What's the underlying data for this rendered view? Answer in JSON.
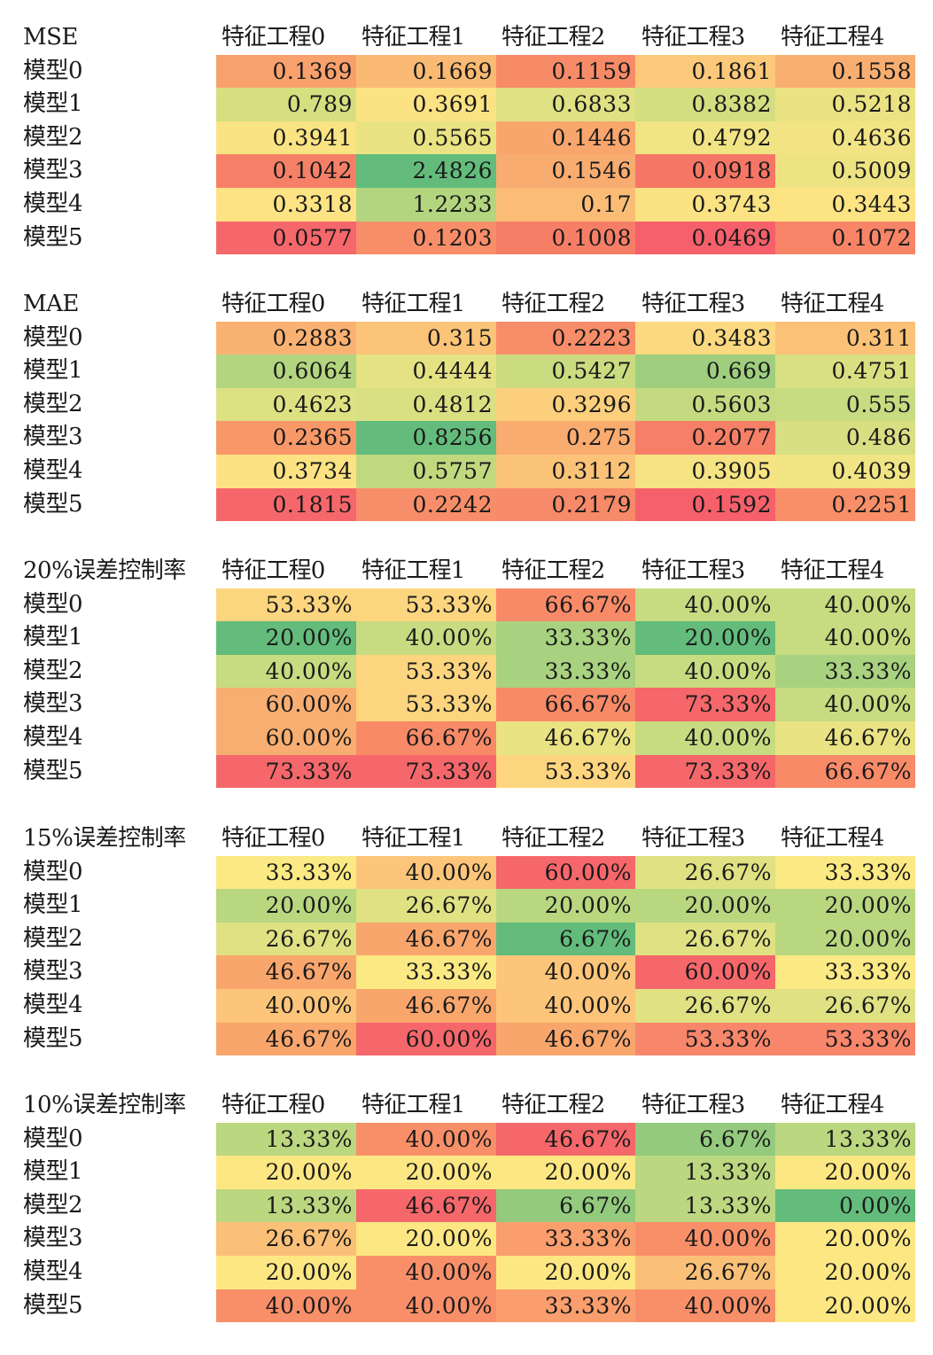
{
  "column_headers": [
    "特征工程0",
    "特征工程1",
    "特征工程2",
    "特征工程3",
    "特征工程4"
  ],
  "tables": [
    {
      "title": "MSE",
      "rows": [
        {
          "label": "模型0",
          "values": [
            "0.1369",
            "0.1669",
            "0.1159",
            "0.1861",
            "0.1558"
          ],
          "colors": [
            "#f8a16c",
            "#faba74",
            "#f78b68",
            "#fcc97a",
            "#f9ae71"
          ]
        },
        {
          "label": "模型1",
          "values": [
            "0.789",
            "0.3691",
            "0.6833",
            "0.8382",
            "0.5218"
          ],
          "colors": [
            "#d6df80",
            "#fbe283",
            "#dfe182",
            "#d3de80",
            "#ebe383"
          ]
        },
        {
          "label": "模型2",
          "values": [
            "0.3941",
            "0.5565",
            "0.1446",
            "0.4792",
            "0.4636"
          ],
          "colors": [
            "#f9e383",
            "#eae383",
            "#f9a66d",
            "#f0e484",
            "#f2e484"
          ]
        },
        {
          "label": "模型3",
          "values": [
            "0.1042",
            "2.4826",
            "0.1546",
            "0.0918",
            "0.5009"
          ],
          "colors": [
            "#f68067",
            "#63bc7b",
            "#f9ac70",
            "#f67665",
            "#ede383"
          ]
        },
        {
          "label": "模型4",
          "values": [
            "0.3318",
            "1.2233",
            "0.17",
            "0.3743",
            "0.3443"
          ],
          "colors": [
            "#fde383",
            "#b3d57f",
            "#fbbd76",
            "#fbe383",
            "#fde483"
          ]
        },
        {
          "label": "模型5",
          "values": [
            "0.0577",
            "0.1203",
            "0.1008",
            "0.0469",
            "0.1072"
          ],
          "colors": [
            "#f5676a",
            "#f88e69",
            "#f77e66",
            "#f5606b",
            "#f78467"
          ]
        }
      ]
    },
    {
      "title": "MAE",
      "rows": [
        {
          "label": "模型0",
          "values": [
            "0.2883",
            "0.315",
            "0.2223",
            "0.3483",
            "0.311"
          ],
          "colors": [
            "#fab272",
            "#fbc478",
            "#f88d69",
            "#fcd980",
            "#fbc277"
          ]
        },
        {
          "label": "模型1",
          "values": [
            "0.6064",
            "0.4444",
            "0.5427",
            "0.669",
            "0.4751"
          ],
          "colors": [
            "#b3d57f",
            "#e4e283",
            "#cbdc80",
            "#9fcf7e",
            "#d9e082"
          ]
        },
        {
          "label": "模型2",
          "values": [
            "0.4623",
            "0.4812",
            "0.3296",
            "0.5603",
            "0.555"
          ],
          "colors": [
            "#dee182",
            "#d9e082",
            "#fbcf7c",
            "#c5da80",
            "#c7db80"
          ]
        },
        {
          "label": "模型3",
          "values": [
            "0.2365",
            "0.8256",
            "0.275",
            "0.2077",
            "0.486"
          ],
          "colors": [
            "#f89869",
            "#63bc7b",
            "#faab70",
            "#f77e67",
            "#d8df82"
          ]
        },
        {
          "label": "模型4",
          "values": [
            "0.3734",
            "0.5757",
            "0.3112",
            "0.3905",
            "0.4039"
          ],
          "colors": [
            "#fde283",
            "#c0d97f",
            "#fbc378",
            "#f5e384",
            "#f1e484"
          ]
        },
        {
          "label": "模型5",
          "values": [
            "0.1815",
            "0.2242",
            "0.2179",
            "0.1592",
            "0.2251"
          ],
          "colors": [
            "#f5676a",
            "#f88e69",
            "#f78a68",
            "#f5606b",
            "#f88f69"
          ]
        }
      ]
    },
    {
      "title": "20%误差控制率",
      "rows": [
        {
          "label": "模型0",
          "values": [
            "53.33%",
            "53.33%",
            "66.67%",
            "40.00%",
            "40.00%"
          ],
          "colors": [
            "#fcd57e",
            "#fcd57e",
            "#f88a68",
            "#c7db80",
            "#c7db80"
          ]
        },
        {
          "label": "模型1",
          "values": [
            "20.00%",
            "40.00%",
            "33.33%",
            "20.00%",
            "40.00%"
          ],
          "colors": [
            "#63bc7b",
            "#c7db80",
            "#a8d27f",
            "#63bc7b",
            "#c7db80"
          ]
        },
        {
          "label": "模型2",
          "values": [
            "40.00%",
            "53.33%",
            "33.33%",
            "40.00%",
            "33.33%"
          ],
          "colors": [
            "#c7db80",
            "#fcd57e",
            "#a8d27f",
            "#c7db80",
            "#a8d27f"
          ]
        },
        {
          "label": "模型3",
          "values": [
            "60.00%",
            "53.33%",
            "66.67%",
            "73.33%",
            "40.00%"
          ],
          "colors": [
            "#f9ae71",
            "#fcd57e",
            "#f88a68",
            "#f5676a",
            "#c7db80"
          ]
        },
        {
          "label": "模型4",
          "values": [
            "60.00%",
            "66.67%",
            "46.67%",
            "40.00%",
            "46.67%"
          ],
          "colors": [
            "#f9ae71",
            "#f88a68",
            "#eae383",
            "#c7db80",
            "#eae383"
          ]
        },
        {
          "label": "模型5",
          "values": [
            "73.33%",
            "73.33%",
            "53.33%",
            "73.33%",
            "66.67%"
          ],
          "colors": [
            "#f5676a",
            "#f5676a",
            "#fcd57e",
            "#f5676a",
            "#f88a68"
          ]
        }
      ]
    },
    {
      "title": "15%误差控制率",
      "rows": [
        {
          "label": "模型0",
          "values": [
            "33.33%",
            "40.00%",
            "60.00%",
            "26.67%",
            "33.33%"
          ],
          "colors": [
            "#fbe983",
            "#fcc579",
            "#f5676a",
            "#dfe182",
            "#fbe983"
          ]
        },
        {
          "label": "模型1",
          "values": [
            "20.00%",
            "26.67%",
            "20.00%",
            "20.00%",
            "20.00%"
          ],
          "colors": [
            "#b9d77f",
            "#dfe182",
            "#b9d77f",
            "#b9d77f",
            "#b9d77f"
          ]
        },
        {
          "label": "模型2",
          "values": [
            "26.67%",
            "46.67%",
            "6.67%",
            "26.67%",
            "20.00%"
          ],
          "colors": [
            "#dfe182",
            "#f9a66d",
            "#63bc7b",
            "#dfe182",
            "#b9d77f"
          ]
        },
        {
          "label": "模型3",
          "values": [
            "46.67%",
            "33.33%",
            "40.00%",
            "60.00%",
            "33.33%"
          ],
          "colors": [
            "#f9a66d",
            "#fbe983",
            "#fcc579",
            "#f5676a",
            "#fbe983"
          ]
        },
        {
          "label": "模型4",
          "values": [
            "40.00%",
            "46.67%",
            "40.00%",
            "26.67%",
            "26.67%"
          ],
          "colors": [
            "#fcc579",
            "#f9a66d",
            "#fcc579",
            "#dfe182",
            "#dfe182"
          ]
        },
        {
          "label": "模型5",
          "values": [
            "46.67%",
            "60.00%",
            "46.67%",
            "53.33%",
            "53.33%"
          ],
          "colors": [
            "#f9a66d",
            "#f5676a",
            "#f9a66d",
            "#f7866b",
            "#f7866b"
          ]
        }
      ]
    },
    {
      "title": "10%误差控制率",
      "rows": [
        {
          "label": "模型0",
          "values": [
            "13.33%",
            "40.00%",
            "46.67%",
            "6.67%",
            "13.33%"
          ],
          "colors": [
            "#bbd77f",
            "#f88f69",
            "#f5676a",
            "#93ca7d",
            "#bbd77f"
          ]
        },
        {
          "label": "模型1",
          "values": [
            "20.00%",
            "20.00%",
            "20.00%",
            "13.33%",
            "20.00%"
          ],
          "colors": [
            "#fde783",
            "#fde783",
            "#fde783",
            "#bbd77f",
            "#fde783"
          ]
        },
        {
          "label": "模型2",
          "values": [
            "13.33%",
            "46.67%",
            "6.67%",
            "13.33%",
            "0.00%"
          ],
          "colors": [
            "#bbd77f",
            "#f5676a",
            "#93ca7d",
            "#bbd77f",
            "#63bc7b"
          ]
        },
        {
          "label": "模型3",
          "values": [
            "26.67%",
            "20.00%",
            "33.33%",
            "40.00%",
            "20.00%"
          ],
          "colors": [
            "#fbc077",
            "#fde783",
            "#fa9e6d",
            "#f88f69",
            "#fde783"
          ]
        },
        {
          "label": "模型4",
          "values": [
            "20.00%",
            "40.00%",
            "20.00%",
            "26.67%",
            "20.00%"
          ],
          "colors": [
            "#fde783",
            "#f88f69",
            "#fde783",
            "#fbc077",
            "#fde783"
          ]
        },
        {
          "label": "模型5",
          "values": [
            "40.00%",
            "40.00%",
            "33.33%",
            "40.00%",
            "20.00%"
          ],
          "colors": [
            "#f88f69",
            "#f88f69",
            "#fa9e6d",
            "#f88f69",
            "#fde783"
          ]
        }
      ]
    }
  ]
}
